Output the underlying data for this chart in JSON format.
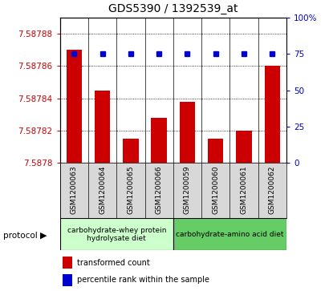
{
  "title": "GDS5390 / 1392539_at",
  "samples": [
    "GSM1200063",
    "GSM1200064",
    "GSM1200065",
    "GSM1200066",
    "GSM1200059",
    "GSM1200060",
    "GSM1200061",
    "GSM1200062"
  ],
  "bar_values": [
    7.58787,
    7.587845,
    7.587815,
    7.587828,
    7.587838,
    7.587815,
    7.58782,
    7.58786
  ],
  "percentile_values": [
    75,
    75,
    75,
    75,
    75,
    75,
    75,
    75
  ],
  "ylim_left": [
    7.5878,
    7.58789
  ],
  "ylim_right": [
    0,
    100
  ],
  "yticks_left": [
    7.5878,
    7.58782,
    7.58784,
    7.58786,
    7.58788
  ],
  "ytick_labels_left": [
    "7.5878",
    "7.58782",
    "7.58784",
    "7.58786",
    "7.58788"
  ],
  "yticks_right": [
    0,
    25,
    50,
    75,
    100
  ],
  "ytick_labels_right": [
    "0",
    "25",
    "50",
    "75",
    "100%"
  ],
  "bar_color": "#cc0000",
  "dot_color": "#0000cc",
  "group1_label": "carbohydrate-whey protein\nhydrolysate diet",
  "group2_label": "carbohydrate-amino acid diet",
  "protocol_label": "protocol",
  "group1_color": "#ccffcc",
  "group2_color": "#66cc66",
  "legend_bar_label": "transformed count",
  "legend_dot_label": "percentile rank within the sample",
  "title_fontsize": 10,
  "sample_fontsize": 6.5
}
